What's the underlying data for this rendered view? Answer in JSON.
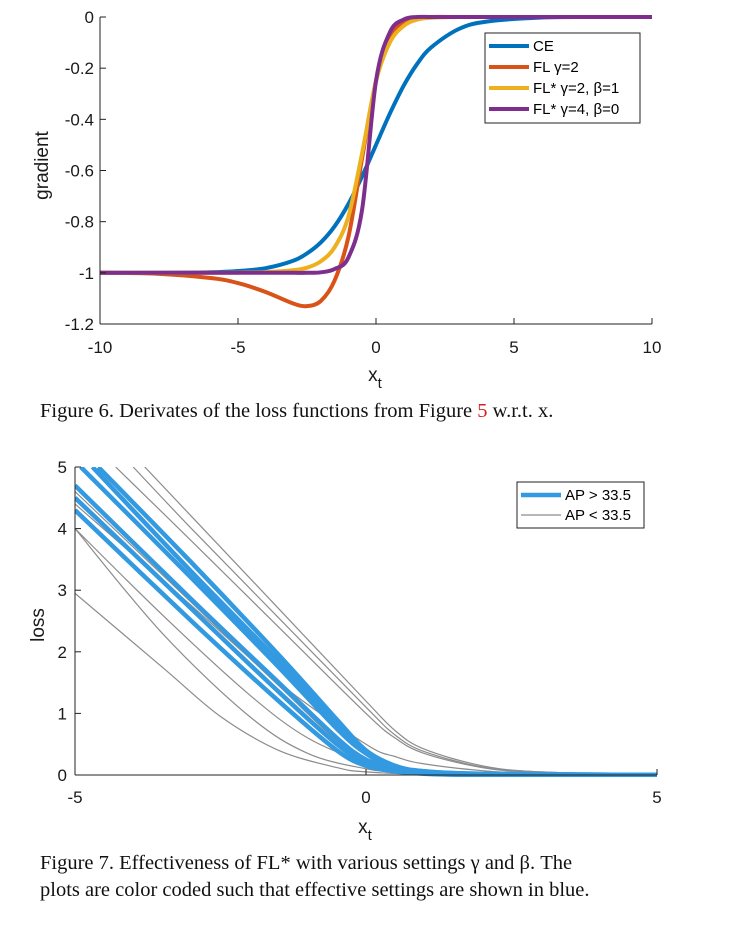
{
  "figure6": {
    "caption_lead": "Figure 6. Derivates of the loss functions from Figure ",
    "caption_ref": "5",
    "caption_tail": " w.r.t. x.",
    "chart_data": {
      "type": "line",
      "xlabel": "x_t",
      "ylabel": "gradient",
      "xlim": [
        -10,
        10
      ],
      "ylim": [
        -1.2,
        0
      ],
      "xticks": [
        "-10",
        "-5",
        "0",
        "5",
        "10"
      ],
      "yticks": [
        "0",
        "-0.2",
        "-0.4",
        "-0.6",
        "-0.8",
        "-1",
        "-1.2"
      ],
      "x": [
        -10,
        -8,
        -6,
        -5,
        -4,
        -3,
        -2.5,
        -2,
        -1.5,
        -1,
        -0.5,
        0,
        0.5,
        1,
        1.5,
        2,
        3,
        4,
        6,
        8,
        10
      ],
      "series": [
        {
          "name": "CE",
          "color": "#0072bd",
          "values": [
            -1.0,
            -1.0,
            -0.998,
            -0.993,
            -0.982,
            -0.953,
            -0.924,
            -0.881,
            -0.818,
            -0.731,
            -0.622,
            -0.5,
            -0.378,
            -0.269,
            -0.182,
            -0.119,
            -0.047,
            -0.018,
            -0.002,
            0.0,
            0.0
          ]
        },
        {
          "name": "FL γ=2",
          "color": "#d95319",
          "values": [
            -1.0,
            -1.003,
            -1.02,
            -1.04,
            -1.075,
            -1.12,
            -1.13,
            -1.11,
            -1.03,
            -0.86,
            -0.55,
            -0.25,
            -0.08,
            -0.02,
            -0.005,
            0.0,
            0.0,
            0.0,
            0.0,
            0.0,
            0.0
          ]
        },
        {
          "name": "FL* γ=2, β=1",
          "color": "#edb120",
          "values": [
            -1.0,
            -1.0,
            -1.0,
            -0.999,
            -0.997,
            -0.99,
            -0.98,
            -0.955,
            -0.9,
            -0.78,
            -0.53,
            -0.25,
            -0.1,
            -0.035,
            -0.01,
            -0.003,
            0.0,
            0.0,
            0.0,
            0.0,
            0.0
          ]
        },
        {
          "name": "FL* γ=4, β=0",
          "color": "#7e2f8e",
          "values": [
            -1.0,
            -1.0,
            -1.0,
            -1.0,
            -1.0,
            -1.0,
            -1.0,
            -0.998,
            -0.985,
            -0.94,
            -0.75,
            -0.25,
            -0.06,
            -0.01,
            0.0,
            0.0,
            0.0,
            0.0,
            0.0,
            0.0,
            0.0
          ]
        }
      ],
      "legend_position": "top-right",
      "grid": false
    }
  },
  "figure7": {
    "caption_line1": "Figure 7. Effectiveness of FL* with various settings γ and β. The",
    "caption_line2": "plots are color coded such that effective settings are shown in blue.",
    "chart_data": {
      "type": "line",
      "xlabel": "x_t",
      "ylabel": "loss",
      "xlim": [
        -5,
        5
      ],
      "ylim": [
        0,
        5
      ],
      "xticks": [
        "-5",
        "0",
        "5"
      ],
      "yticks": [
        "5",
        "4",
        "3",
        "2",
        "1",
        "0"
      ],
      "legend_position": "top-right",
      "grid": false,
      "legend": [
        {
          "name": "AP > 33.5",
          "color": "#3399e0"
        },
        {
          "name": "AP < 33.5",
          "color": "#8c8c8c"
        }
      ],
      "series_groups": [
        {
          "group": "AP > 33.5",
          "color": "#3399e0",
          "curves": [
            {
              "x": [
                -4.9,
                -3,
                -1.5,
                -0.5,
                0,
                0.5,
                1,
                2,
                5
              ],
              "y": [
                5.0,
                3.2,
                1.75,
                0.75,
                0.35,
                0.13,
                0.06,
                0.02,
                0.0
              ]
            },
            {
              "x": [
                -4.6,
                -3,
                -1.5,
                -0.5,
                0,
                0.5,
                1,
                2,
                5
              ],
              "y": [
                5.0,
                3.45,
                1.95,
                0.9,
                0.4,
                0.15,
                0.06,
                0.02,
                0.0
              ]
            },
            {
              "x": [
                -5,
                -3,
                -1.5,
                -0.5,
                0,
                0.5,
                1,
                2,
                5
              ],
              "y": [
                4.7,
                2.85,
                1.5,
                0.6,
                0.25,
                0.1,
                0.04,
                0.01,
                0.0
              ]
            },
            {
              "x": [
                -5,
                -3,
                -1.5,
                -0.5,
                0,
                0.5,
                1,
                2,
                5
              ],
              "y": [
                4.5,
                2.7,
                1.35,
                0.5,
                0.2,
                0.08,
                0.03,
                0.01,
                0.0
              ]
            },
            {
              "x": [
                -5,
                -3,
                -1.5,
                -0.5,
                0,
                0.5,
                1,
                2,
                5
              ],
              "y": [
                4.3,
                2.5,
                1.2,
                0.4,
                0.15,
                0.06,
                0.02,
                0.0,
                0.0
              ]
            },
            {
              "x": [
                -4.7,
                -3,
                -1.5,
                -0.5,
                0,
                0.5,
                1,
                2,
                5
              ],
              "y": [
                5.0,
                3.3,
                1.85,
                0.82,
                0.35,
                0.12,
                0.05,
                0.02,
                0.0
              ]
            }
          ]
        },
        {
          "group": "AP < 33.5",
          "color": "#8c8c8c",
          "curves": [
            {
              "x": [
                -4.3,
                -3,
                -1.5,
                0,
                0.5,
                1,
                2,
                3,
                5
              ],
              "y": [
                5.0,
                3.8,
                2.4,
                1.0,
                0.6,
                0.35,
                0.12,
                0.04,
                0.0
              ]
            },
            {
              "x": [
                -4.0,
                -3,
                -1.5,
                0,
                0.5,
                1,
                2,
                3,
                5
              ],
              "y": [
                5.0,
                4.0,
                2.55,
                1.1,
                0.65,
                0.38,
                0.13,
                0.05,
                0.0
              ]
            },
            {
              "x": [
                -3.8,
                -3,
                -1.5,
                0,
                0.5,
                1,
                2,
                3,
                5
              ],
              "y": [
                5.0,
                4.2,
                2.7,
                1.2,
                0.72,
                0.42,
                0.15,
                0.05,
                0.0
              ]
            },
            {
              "x": [
                -5,
                -3,
                -1.5,
                0,
                0.5,
                1,
                2,
                3,
                5
              ],
              "y": [
                4.4,
                2.75,
                1.5,
                0.5,
                0.3,
                0.18,
                0.07,
                0.02,
                0.0
              ]
            },
            {
              "x": [
                -5,
                -3.5,
                -2,
                -1,
                0,
                0.5,
                1,
                2,
                5
              ],
              "y": [
                4.0,
                2.6,
                1.3,
                0.6,
                0.2,
                0.1,
                0.05,
                0.01,
                0.0
              ]
            },
            {
              "x": [
                -5,
                -3.5,
                -2,
                -1,
                0,
                0.5,
                1,
                2,
                5
              ],
              "y": [
                4.0,
                2.3,
                0.95,
                0.35,
                0.1,
                0.05,
                0.02,
                0.0,
                0.0
              ]
            },
            {
              "x": [
                -5,
                -3.5,
                -2.5,
                -1.5,
                -0.5,
                0,
                1,
                2,
                5
              ],
              "y": [
                2.95,
                1.75,
                0.95,
                0.4,
                0.12,
                0.05,
                0.01,
                0.0,
                0.0
              ]
            },
            {
              "x": [
                -5,
                -3,
                -1.5,
                -0.5,
                0,
                0.5,
                1,
                2,
                5
              ],
              "y": [
                4.6,
                2.8,
                1.45,
                0.55,
                0.22,
                0.12,
                0.06,
                0.02,
                0.0
              ]
            }
          ]
        }
      ]
    }
  }
}
